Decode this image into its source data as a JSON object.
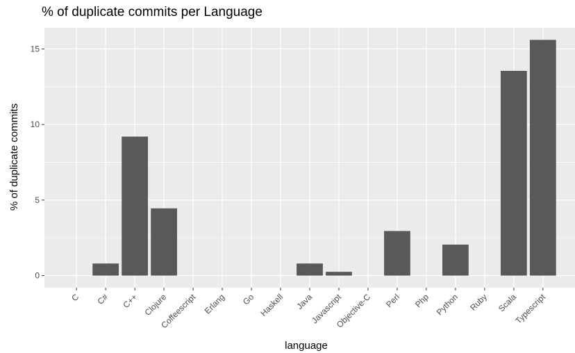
{
  "chart_data": {
    "type": "bar",
    "title": "% of duplicate commits per Language",
    "xlabel": "language",
    "ylabel": "% of duplicate commits",
    "categories": [
      "C",
      "C#",
      "C++",
      "Clojure",
      "Coffeescript",
      "Erlang",
      "Go",
      "Haskell",
      "Java",
      "Javascript",
      "Objective-C",
      "Perl",
      "Php",
      "Python",
      "Ruby",
      "Scala",
      "Typescript"
    ],
    "values": [
      0,
      0.8,
      9.2,
      4.45,
      0,
      0,
      0,
      0,
      0.8,
      0.25,
      0,
      2.95,
      0,
      2.05,
      0,
      13.55,
      15.6
    ],
    "ylim": [
      -0.8,
      16.4
    ],
    "yticks": [
      0,
      5,
      10,
      15
    ],
    "grid": true,
    "colors": {
      "panel": "#ebebeb",
      "grid_major": "#ffffff",
      "bar": "#595959"
    }
  }
}
